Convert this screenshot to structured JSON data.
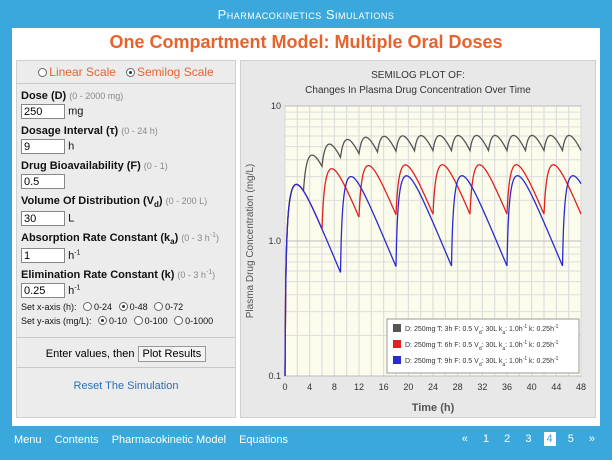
{
  "app": {
    "title": "Pharmacokinetics Simulations",
    "page_title": "One Compartment Model: Multiple Oral Doses"
  },
  "scale": {
    "linear_label": "Linear Scale",
    "semilog_label": "Semilog Scale",
    "selected": "semilog"
  },
  "params": {
    "dose": {
      "label": "Dose (D)",
      "range": "(0 - 2000 mg)",
      "value": "250",
      "unit": "mg"
    },
    "interval": {
      "label": "Dosage Interval (τ)",
      "range": "(0 - 24 h)",
      "value": "9",
      "unit": "h"
    },
    "bio": {
      "label": "Drug Bioavailability (F)",
      "range": "(0 - 1)",
      "value": "0.5",
      "unit": ""
    },
    "vd": {
      "label_main": "Volume Of Distribution (V",
      "label_sub": "d",
      "label_end": ")",
      "range": "(0 - 200 L)",
      "value": "30",
      "unit": "L"
    },
    "ka": {
      "label_main": "Absorption Rate Constant (k",
      "label_sub": "a",
      "label_end": ")",
      "range": "(0 - 3 h",
      "range_sup": "-1",
      "range_end": ")",
      "value": "1",
      "unit": "h",
      "unit_sup": "-1"
    },
    "k": {
      "label": "Elimination Rate Constant (k)",
      "range": "(0 - 3 h",
      "range_sup": "-1",
      "range_end": ")",
      "value": "0.25",
      "unit": "h",
      "unit_sup": "-1"
    }
  },
  "xaxis": {
    "label": "Set x-axis (h):",
    "options": [
      "0-24",
      "0-48",
      "0-72"
    ],
    "selected": 1
  },
  "yaxis": {
    "label": "Set y-axis (mg/L):",
    "options": [
      "0-10",
      "0-100",
      "0-1000"
    ],
    "selected": 0
  },
  "actions": {
    "enter_text": "Enter values, then",
    "plot_button": "Plot Results",
    "reset_link": "Reset The Simulation"
  },
  "nav": {
    "items": [
      "Menu",
      "Contents",
      "Pharmacokinetic Model",
      "Equations"
    ]
  },
  "pager": {
    "prev": "«",
    "pages": [
      "1",
      "2",
      "3",
      "4",
      "5"
    ],
    "current": 3,
    "next": "»"
  },
  "chart_data": {
    "type": "line",
    "title_line1": "SEMILOG PLOT OF:",
    "title_line2": "Changes In Plasma Drug Concentration Over Time",
    "xlabel": "Time (h)",
    "ylabel": "Plasma Drug Concentration (mg/L)",
    "xlim": [
      0,
      48
    ],
    "ylim": [
      0.1,
      10
    ],
    "log_y": true,
    "grid": true,
    "x_ticks": [
      "0",
      "4",
      "8",
      "12",
      "16",
      "20",
      "24",
      "28",
      "32",
      "36",
      "40",
      "44",
      "48"
    ],
    "y_ticks": [
      "0.1",
      "1.0",
      "10"
    ],
    "legend_position": "bottom-right",
    "series": [
      {
        "color": "#555555",
        "dose": 250,
        "tau": 3,
        "F": 0.5,
        "Vd": 30,
        "ka": 1.0,
        "k": 0.25,
        "legend": {
          "a": "D: 250mg",
          "b": "T: 3h",
          "c": "F: 0.5",
          "d": "V",
          "d_sub": "d",
          "e": ": 30L",
          "f": "k",
          "f_sub": "a",
          "g": ": 1.0h",
          "g_sup": "-1",
          "h": "k: 0.25h",
          "h_sup": "-1"
        }
      },
      {
        "color": "#e02020",
        "dose": 250,
        "tau": 6,
        "F": 0.5,
        "Vd": 30,
        "ka": 1.0,
        "k": 0.25,
        "legend": {
          "a": "D: 250mg",
          "b": "T: 6h",
          "c": "F: 0.5",
          "d": "V",
          "d_sub": "d",
          "e": ": 30L",
          "f": "k",
          "f_sub": "a",
          "g": ": 1.0h",
          "g_sup": "-1",
          "h": "k: 0.25h",
          "h_sup": "-1"
        }
      },
      {
        "color": "#2a2ad0",
        "dose": 250,
        "tau": 9,
        "F": 0.5,
        "Vd": 30,
        "ka": 1.0,
        "k": 0.25,
        "legend": {
          "a": "D: 250mg",
          "b": "T: 9h",
          "c": "F: 0.5",
          "d": "V",
          "d_sub": "d",
          "e": ": 30L",
          "f": "k",
          "f_sub": "a",
          "g": ": 1.0h",
          "g_sup": "-1",
          "h": "k: 0.25h",
          "h_sup": "-1"
        }
      }
    ]
  }
}
